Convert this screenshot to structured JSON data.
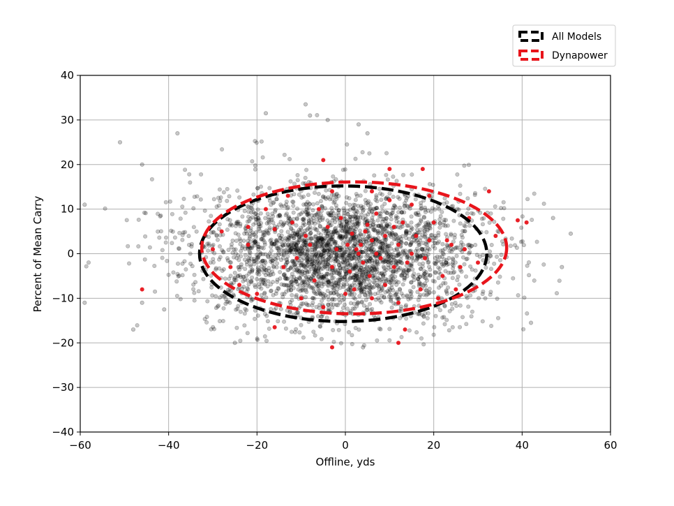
{
  "chart_data": {
    "type": "scatter",
    "title": "",
    "xlabel": "Offline, yds",
    "ylabel": "Percent of Mean Carry",
    "xlim": [
      -60,
      60
    ],
    "ylim": [
      -40,
      40
    ],
    "xticks": [
      -60,
      -40,
      -20,
      0,
      20,
      40,
      60
    ],
    "yticks": [
      -40,
      -30,
      -20,
      -10,
      0,
      10,
      20,
      30,
      40
    ],
    "x_tick_labels": [
      "−60",
      "−40",
      "−20",
      "0",
      "20",
      "40",
      "60"
    ],
    "y_tick_labels": [
      "−40",
      "−30",
      "−20",
      "−10",
      "0",
      "10",
      "20",
      "30",
      "40"
    ],
    "grid": true,
    "legend_placement": "top-right, outside plot",
    "series": [
      {
        "name": "All Models",
        "color": "#000000",
        "point_count": 3000,
        "distribution": {
          "x_mean": -1,
          "x_sd": 16.5,
          "y_mean": 0,
          "y_sd": 7.6,
          "x_range": [
            -60,
            52
          ],
          "y_range": [
            -21,
            34
          ]
        },
        "highlighted_points": [
          {
            "x": -51,
            "y": 25
          },
          {
            "x": -46,
            "y": 20
          },
          {
            "x": -46,
            "y": -11
          },
          {
            "x": -59,
            "y": -11
          },
          {
            "x": -59,
            "y": 11
          },
          {
            "x": -38,
            "y": 27
          },
          {
            "x": -18,
            "y": 31.5
          },
          {
            "x": -9,
            "y": 33.5
          },
          {
            "x": -8,
            "y": 31
          },
          {
            "x": -4,
            "y": 30
          },
          {
            "x": 3,
            "y": 29
          },
          {
            "x": 5,
            "y": 27
          },
          {
            "x": 47,
            "y": 8
          },
          {
            "x": 51,
            "y": 4.5
          },
          {
            "x": 49,
            "y": -3
          },
          {
            "x": 42,
            "y": -15.5
          },
          {
            "x": -48,
            "y": -17
          },
          {
            "x": -41,
            "y": -12.5
          },
          {
            "x": 4,
            "y": -21
          },
          {
            "x": -25,
            "y": -20
          }
        ],
        "ellipse": {
          "center_x": -0.5,
          "center_y": 0,
          "semi_axis_x": 32.5,
          "semi_axis_y": 15.2
        }
      },
      {
        "name": "Dynapower",
        "color": "#e8141b",
        "point_count": 200,
        "points": [
          {
            "x": -46,
            "y": -8
          },
          {
            "x": -5,
            "y": 21
          },
          {
            "x": 10,
            "y": 19
          },
          {
            "x": 17.5,
            "y": 19
          },
          {
            "x": 32.5,
            "y": 14
          },
          {
            "x": 39,
            "y": 7.5
          },
          {
            "x": 41,
            "y": 7
          },
          {
            "x": -16,
            "y": -16.5
          },
          {
            "x": 12,
            "y": -20
          },
          {
            "x": -3,
            "y": -21
          },
          {
            "x": 13.5,
            "y": -17
          },
          {
            "x": -22,
            "y": 6
          },
          {
            "x": -22,
            "y": 2
          },
          {
            "x": -16,
            "y": 5.5
          },
          {
            "x": -14,
            "y": -3
          },
          {
            "x": -12,
            "y": 7
          },
          {
            "x": -9,
            "y": 4
          },
          {
            "x": -6,
            "y": 10
          },
          {
            "x": -4,
            "y": 6
          },
          {
            "x": -3,
            "y": -3
          },
          {
            "x": -1,
            "y": 8
          },
          {
            "x": 0.5,
            "y": 2
          },
          {
            "x": 1.5,
            "y": 4.5
          },
          {
            "x": 2.5,
            "y": 1
          },
          {
            "x": 3,
            "y": 0
          },
          {
            "x": 3.5,
            "y": 2
          },
          {
            "x": 4,
            "y": -2
          },
          {
            "x": 4.5,
            "y": 5
          },
          {
            "x": 5,
            "y": 6.5
          },
          {
            "x": 5.5,
            "y": -5
          },
          {
            "x": 6,
            "y": 3
          },
          {
            "x": 7,
            "y": 9
          },
          {
            "x": 8,
            "y": -1
          },
          {
            "x": 9,
            "y": 4
          },
          {
            "x": 10,
            "y": 12
          },
          {
            "x": 11,
            "y": -3
          },
          {
            "x": 12,
            "y": 2
          },
          {
            "x": 13,
            "y": 7
          },
          {
            "x": 14,
            "y": -2
          },
          {
            "x": 15,
            "y": 11
          },
          {
            "x": 16,
            "y": 4
          },
          {
            "x": 18,
            "y": -1
          },
          {
            "x": 19,
            "y": 3
          },
          {
            "x": 20,
            "y": 7
          },
          {
            "x": 22,
            "y": -5
          },
          {
            "x": 24,
            "y": 2
          },
          {
            "x": 26,
            "y": -3
          },
          {
            "x": 28,
            "y": 8
          },
          {
            "x": 30,
            "y": -2
          },
          {
            "x": 34,
            "y": 4
          },
          {
            "x": -26,
            "y": -3
          },
          {
            "x": -24,
            "y": -7
          },
          {
            "x": -20,
            "y": -9
          },
          {
            "x": -18,
            "y": 10
          },
          {
            "x": -10,
            "y": -10
          },
          {
            "x": -7,
            "y": -6
          },
          {
            "x": -5,
            "y": -12
          },
          {
            "x": 0,
            "y": -9
          },
          {
            "x": 2,
            "y": -8
          },
          {
            "x": 6,
            "y": -10
          },
          {
            "x": 9,
            "y": -7
          },
          {
            "x": 12,
            "y": -11
          },
          {
            "x": 17,
            "y": -8
          },
          {
            "x": 21,
            "y": -10
          },
          {
            "x": 25,
            "y": -8
          },
          {
            "x": -28,
            "y": 5
          },
          {
            "x": -30,
            "y": 1
          },
          {
            "x": -13,
            "y": 13
          },
          {
            "x": -3,
            "y": 14
          },
          {
            "x": 6,
            "y": 14
          },
          {
            "x": 19,
            "y": 13
          },
          {
            "x": -8,
            "y": 2
          },
          {
            "x": -2,
            "y": 1
          },
          {
            "x": 1,
            "y": -4
          },
          {
            "x": 7,
            "y": 0
          },
          {
            "x": 11,
            "y": 6
          },
          {
            "x": 15,
            "y": 0
          },
          {
            "x": 23,
            "y": 3
          },
          {
            "x": 27,
            "y": 1
          },
          {
            "x": -11,
            "y": -1
          }
        ],
        "ellipse": {
          "center_x": 2,
          "center_y": 1.3,
          "semi_axis_x": 34.5,
          "semi_axis_y": 14.8
        }
      }
    ]
  }
}
